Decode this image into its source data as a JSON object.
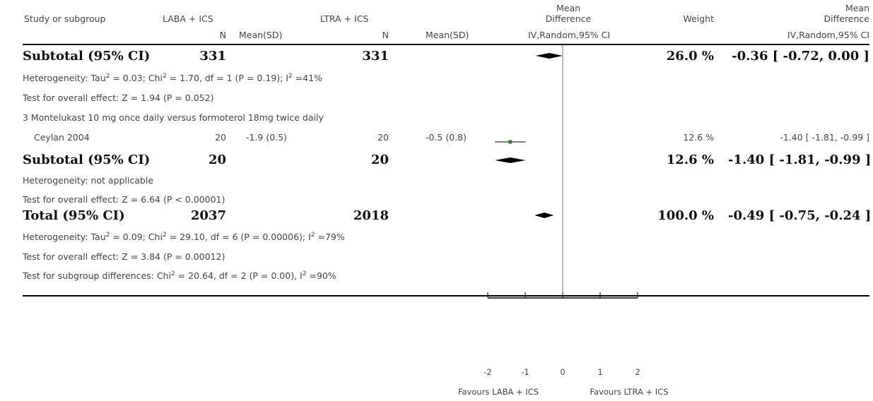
{
  "header": {
    "study": "Study or subgroup",
    "group1": "LABA + ICS",
    "group2": "LTRA + ICS",
    "md_line1": "Mean",
    "md_line2": "Difference",
    "weight": "Weight",
    "md2_line1": "Mean",
    "md2_line2": "Difference",
    "n1": "N",
    "msd1": "Mean(SD)",
    "n2": "N",
    "msd2": "Mean(SD)",
    "ci_plot": "IV,Random,95% CI",
    "ci_text": "IV,Random,95% CI"
  },
  "subtotal1": {
    "label": "Subtotal (95% CI)",
    "n1": "331",
    "n2": "331",
    "weight": "26.0 %",
    "ci": "-0.36 [ -0.72, 0.00 ]",
    "het_a": "Heterogeneity: Tau",
    "het_b": " = 0.03; Chi",
    "het_c": " = 1.70, df = 1 (P = 0.19); I",
    "het_d": " =41%",
    "overall": "Test for overall effect: Z = 1.94 (P = 0.052)"
  },
  "group3": {
    "label": "3 Montelukast 10 mg once daily versus formoterol 18mg twice daily",
    "study": "Ceylan 2004",
    "n1": "20",
    "msd1": "-1.9 (0.5)",
    "n2": "20",
    "msd2": "-0.5 (0.8)",
    "weight": "12.6 %",
    "ci": "-1.40 [ -1.81, -0.99 ]"
  },
  "subtotal2": {
    "label": "Subtotal (95% CI)",
    "n1": "20",
    "n2": "20",
    "weight": "12.6 %",
    "ci": "-1.40 [ -1.81, -0.99 ]",
    "het": "Heterogeneity: not applicable",
    "overall": "Test for overall effect: Z = 6.64 (P < 0.00001)"
  },
  "total": {
    "label": "Total (95% CI)",
    "n1": "2037",
    "n2": "2018",
    "weight": "100.0 %",
    "ci": "-0.49 [ -0.75, -0.24 ]",
    "het_a": "Heterogeneity: Tau",
    "het_b": " = 0.09; Chi",
    "het_c": " = 29.10, df = 6 (P = 0.00006); I",
    "het_d": " =79%",
    "overall": "Test for overall effect: Z = 3.84 (P = 0.00012)",
    "sub_a": "Test for subgroup differences: Chi",
    "sub_b": " = 20.64, df = 2 (P = 0.00), I",
    "sub_c": " =90%"
  },
  "footer": {
    "favours_left": "Favours LABA + ICS",
    "favours_right": "Favours LTRA + ICS"
  },
  "colors": {
    "study_marker": "#2e7d32",
    "diamond": "#000000"
  },
  "chart_data": {
    "type": "forest",
    "xlim": [
      -2,
      2
    ],
    "ticks": [
      -2,
      -1,
      0,
      1,
      2
    ],
    "tick_labels": [
      "-2",
      "-1",
      "0",
      "1",
      "2"
    ],
    "rows": [
      {
        "name": "Subtotal (95% CI)",
        "kind": "diamond",
        "est": -0.36,
        "lo": -0.72,
        "hi": 0.0
      },
      {
        "name": "Ceylan 2004",
        "kind": "study",
        "est": -1.4,
        "lo": -1.81,
        "hi": -0.99,
        "weight": 12.6
      },
      {
        "name": "Subtotal (95% CI)",
        "kind": "diamond",
        "est": -1.4,
        "lo": -1.81,
        "hi": -0.99
      },
      {
        "name": "Total (95% CI)",
        "kind": "diamond",
        "est": -0.49,
        "lo": -0.75,
        "hi": -0.24
      }
    ]
  }
}
